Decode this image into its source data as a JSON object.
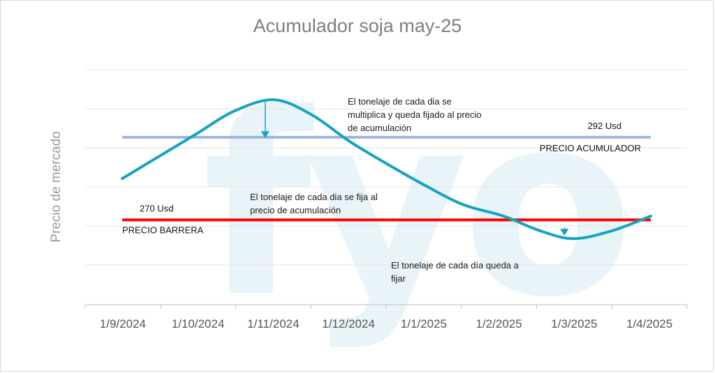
{
  "chart_data": {
    "type": "line",
    "title": "Acumulador soja may-25",
    "ylabel": "Precio de mercado",
    "xlabel": "",
    "x_ticks": [
      "1/9/2024",
      "1/10/2024",
      "1/11/2024",
      "1/12/2024",
      "1/1/2025",
      "1/2/2025",
      "1/3/2025",
      "1/4/2025"
    ],
    "grid": "horizontal",
    "ylim": [
      258,
      310
    ],
    "watermark": "fyo",
    "series": [
      {
        "color": "#16a3c2",
        "x": [
          "2024-09-01",
          "2024-09-16",
          "2024-10-01",
          "2024-10-16",
          "2024-11-01",
          "2024-11-16",
          "2024-12-01",
          "2024-12-16",
          "2025-01-01",
          "2025-01-16",
          "2025-02-01",
          "2025-02-16",
          "2025-03-01",
          "2025-03-16",
          "2025-04-01"
        ],
        "y": [
          281,
          287,
          293,
          299,
          302,
          298,
          291,
          285,
          279,
          274,
          271,
          267,
          265,
          267,
          271
        ]
      }
    ],
    "reference_lines": [
      {
        "name": "PRECIO ACUMULADOR",
        "value": 292,
        "value_label": "292 Usd",
        "color": "#9db5df"
      },
      {
        "name": "PRECIO BARRERA",
        "value": 270,
        "value_label": "270 Usd",
        "color": "#ff0000"
      }
    ],
    "annotations": [
      {
        "lines": [
          "El tonelaje de cada dia se",
          "multiplica y queda fijado al precio",
          "de acumulación"
        ]
      },
      {
        "lines": [
          "El tonelaje de cada dia  se fija al",
          "precio de acumulación"
        ]
      },
      {
        "lines": [
          "El tonelaje de cada día queda a",
          "fijar"
        ]
      }
    ],
    "arrows": [
      {
        "x": "2024-11-01",
        "from": 302,
        "to": 291
      },
      {
        "x": "2025-03-01",
        "from": 268,
        "to": 265
      }
    ]
  }
}
